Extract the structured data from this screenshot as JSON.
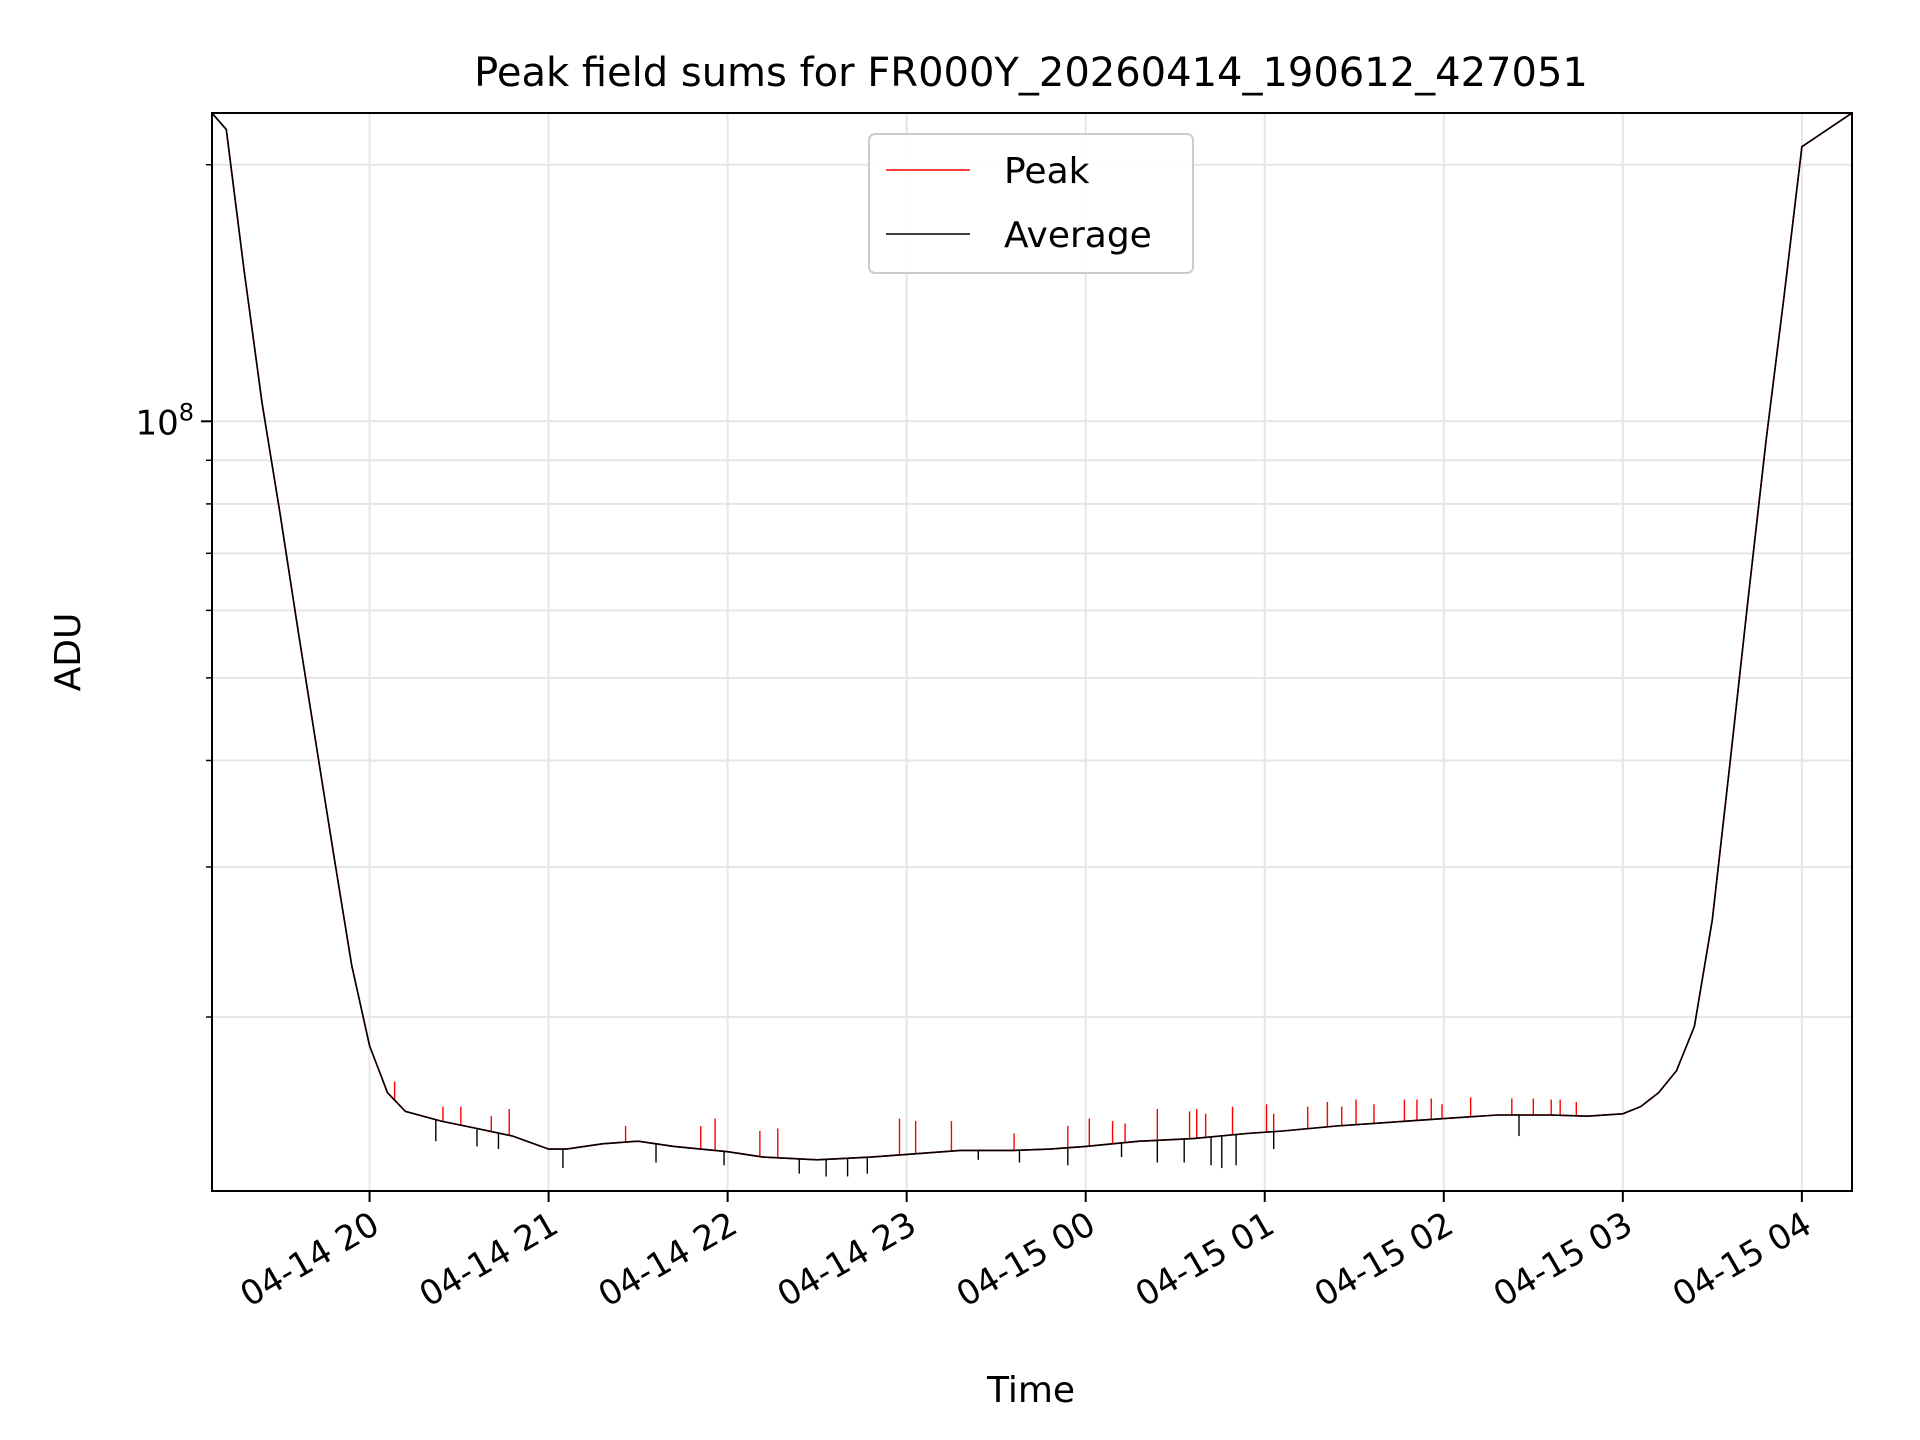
{
  "chart_data": {
    "type": "line",
    "title": "Peak field sums for FR000Y_20260414_190612_427051",
    "xlabel": "Time",
    "ylabel": "ADU",
    "yscale": "log",
    "grid": true,
    "legend_position": "upper center",
    "ylim": [
      12500000,
      230000000
    ],
    "xlim_hours": [
      19.12,
      28.28
    ],
    "x_unit": "hours since 2026-04-14 00:00",
    "xticks": [
      {
        "label": "04-14 20",
        "value": 20
      },
      {
        "label": "04-14 21",
        "value": 21
      },
      {
        "label": "04-14 22",
        "value": 22
      },
      {
        "label": "04-14 23",
        "value": 23
      },
      {
        "label": "04-15 00",
        "value": 24
      },
      {
        "label": "04-15 01",
        "value": 25
      },
      {
        "label": "04-15 02",
        "value": 26
      },
      {
        "label": "04-15 03",
        "value": 27
      },
      {
        "label": "04-15 04",
        "value": 28
      }
    ],
    "ymajor_tick": {
      "value": 100000000,
      "label_base": "10",
      "label_exp": "8"
    },
    "yminor_ticks": [
      20000000,
      30000000,
      40000000,
      50000000,
      60000000,
      70000000,
      80000000,
      90000000,
      200000000
    ],
    "series": [
      {
        "name": "Peak",
        "color": "#ff0000",
        "x": [
          19.12,
          19.2,
          19.3,
          19.4,
          19.5,
          19.6,
          19.7,
          19.8,
          19.9,
          20.0,
          20.1,
          20.2,
          20.4,
          20.6,
          20.8,
          21.0,
          21.1,
          21.3,
          21.5,
          21.7,
          22.0,
          22.2,
          22.5,
          22.8,
          23.0,
          23.3,
          23.6,
          23.8,
          24.0,
          24.3,
          24.6,
          24.9,
          25.1,
          25.4,
          25.7,
          26.0,
          26.3,
          26.6,
          26.8,
          27.0,
          27.1,
          27.2,
          27.3,
          27.4,
          27.5,
          27.6,
          27.7,
          27.8,
          27.9,
          28.0,
          28.28
        ],
        "y": [
          230000000,
          220000000,
          150000000,
          105000000,
          78000000,
          57000000,
          42000000,
          31000000,
          23000000,
          18500000,
          16300000,
          15500000,
          15100000,
          14800000,
          14500000,
          14000000,
          14000000,
          14200000,
          14300000,
          14100000,
          13900000,
          13700000,
          13600000,
          13700000,
          13800000,
          13950000,
          13950000,
          14000000,
          14100000,
          14300000,
          14400000,
          14600000,
          14700000,
          14900000,
          15050000,
          15200000,
          15350000,
          15350000,
          15300000,
          15400000,
          15700000,
          16300000,
          17300000,
          19500000,
          26000000,
          40000000,
          62000000,
          95000000,
          140000000,
          210000000,
          230000000
        ],
        "spikes": [
          {
            "x": 20.14,
            "peak": 16800000
          },
          {
            "x": 20.41,
            "peak": 15700000
          },
          {
            "x": 20.51,
            "peak": 15700000
          },
          {
            "x": 20.68,
            "peak": 15300000
          },
          {
            "x": 20.78,
            "peak": 15600000
          },
          {
            "x": 21.43,
            "peak": 14900000
          },
          {
            "x": 21.85,
            "peak": 14900000
          },
          {
            "x": 21.93,
            "peak": 15200000
          },
          {
            "x": 22.18,
            "peak": 14700000
          },
          {
            "x": 22.28,
            "peak": 14800000
          },
          {
            "x": 22.96,
            "peak": 15200000
          },
          {
            "x": 23.05,
            "peak": 15100000
          },
          {
            "x": 23.25,
            "peak": 15100000
          },
          {
            "x": 23.6,
            "peak": 14600000
          },
          {
            "x": 23.9,
            "peak": 14900000
          },
          {
            "x": 24.02,
            "peak": 15200000
          },
          {
            "x": 24.15,
            "peak": 15100000
          },
          {
            "x": 24.22,
            "peak": 15000000
          },
          {
            "x": 24.4,
            "peak": 15600000
          },
          {
            "x": 24.58,
            "peak": 15500000
          },
          {
            "x": 24.62,
            "peak": 15600000
          },
          {
            "x": 24.67,
            "peak": 15400000
          },
          {
            "x": 24.82,
            "peak": 15700000
          },
          {
            "x": 25.01,
            "peak": 15800000
          },
          {
            "x": 25.05,
            "peak": 15400000
          },
          {
            "x": 25.24,
            "peak": 15700000
          },
          {
            "x": 25.35,
            "peak": 15900000
          },
          {
            "x": 25.43,
            "peak": 15700000
          },
          {
            "x": 25.51,
            "peak": 16000000
          },
          {
            "x": 25.61,
            "peak": 15800000
          },
          {
            "x": 25.78,
            "peak": 16000000
          },
          {
            "x": 25.85,
            "peak": 16000000
          },
          {
            "x": 25.93,
            "peak": 16050000
          },
          {
            "x": 25.99,
            "peak": 15800000
          },
          {
            "x": 26.15,
            "peak": 16100000
          },
          {
            "x": 26.38,
            "peak": 16050000
          },
          {
            "x": 26.5,
            "peak": 16050000
          },
          {
            "x": 26.6,
            "peak": 16000000
          },
          {
            "x": 26.65,
            "peak": 16000000
          },
          {
            "x": 26.74,
            "peak": 15900000
          }
        ]
      },
      {
        "name": "Average",
        "color": "#000000",
        "x": [
          19.12,
          19.2,
          19.3,
          19.4,
          19.5,
          19.6,
          19.7,
          19.8,
          19.9,
          20.0,
          20.1,
          20.2,
          20.4,
          20.6,
          20.8,
          21.0,
          21.1,
          21.3,
          21.5,
          21.7,
          22.0,
          22.2,
          22.5,
          22.8,
          23.0,
          23.3,
          23.6,
          23.8,
          24.0,
          24.3,
          24.6,
          24.9,
          25.1,
          25.4,
          25.7,
          26.0,
          26.3,
          26.6,
          26.8,
          27.0,
          27.1,
          27.2,
          27.3,
          27.4,
          27.5,
          27.6,
          27.7,
          27.8,
          27.9,
          28.0,
          28.28
        ],
        "y": [
          230000000,
          220000000,
          150000000,
          105000000,
          78000000,
          57000000,
          42000000,
          31000000,
          23000000,
          18500000,
          16300000,
          15500000,
          15100000,
          14800000,
          14500000,
          14000000,
          14000000,
          14200000,
          14300000,
          14100000,
          13900000,
          13700000,
          13600000,
          13700000,
          13800000,
          13950000,
          13950000,
          14000000,
          14100000,
          14300000,
          14400000,
          14600000,
          14700000,
          14900000,
          15050000,
          15200000,
          15350000,
          15350000,
          15300000,
          15400000,
          15700000,
          16300000,
          17300000,
          19500000,
          26000000,
          40000000,
          62000000,
          95000000,
          140000000,
          210000000,
          230000000
        ],
        "dips": [
          {
            "x": 20.37,
            "trough": 14300000
          },
          {
            "x": 20.6,
            "trough": 14100000
          },
          {
            "x": 20.72,
            "trough": 14000000
          },
          {
            "x": 21.08,
            "trough": 13300000
          },
          {
            "x": 21.6,
            "trough": 13500000
          },
          {
            "x": 21.98,
            "trough": 13400000
          },
          {
            "x": 22.4,
            "trough": 13100000
          },
          {
            "x": 22.55,
            "trough": 13000000
          },
          {
            "x": 22.67,
            "trough": 13000000
          },
          {
            "x": 22.78,
            "trough": 13100000
          },
          {
            "x": 23.4,
            "trough": 13600000
          },
          {
            "x": 23.63,
            "trough": 13500000
          },
          {
            "x": 23.9,
            "trough": 13400000
          },
          {
            "x": 24.2,
            "trough": 13700000
          },
          {
            "x": 24.4,
            "trough": 13500000
          },
          {
            "x": 24.55,
            "trough": 13500000
          },
          {
            "x": 24.7,
            "trough": 13400000
          },
          {
            "x": 24.76,
            "trough": 13300000
          },
          {
            "x": 24.84,
            "trough": 13400000
          },
          {
            "x": 25.05,
            "trough": 14000000
          },
          {
            "x": 26.42,
            "trough": 14500000
          }
        ]
      }
    ]
  }
}
